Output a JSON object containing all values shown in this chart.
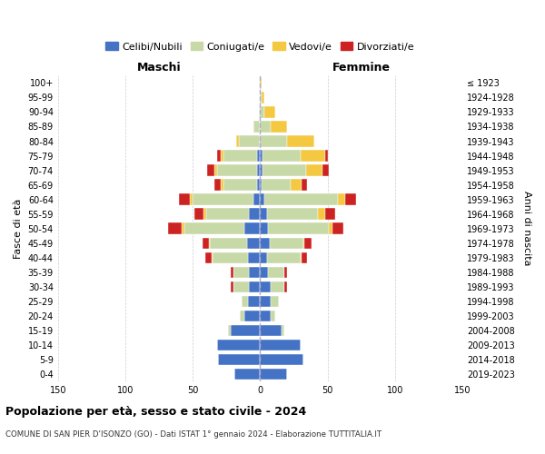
{
  "age_groups": [
    "0-4",
    "5-9",
    "10-14",
    "15-19",
    "20-24",
    "25-29",
    "30-34",
    "35-39",
    "40-44",
    "45-49",
    "50-54",
    "55-59",
    "60-64",
    "65-69",
    "70-74",
    "75-79",
    "80-84",
    "85-89",
    "90-94",
    "95-99",
    "100+"
  ],
  "birth_years": [
    "2019-2023",
    "2014-2018",
    "2009-2013",
    "2004-2008",
    "1999-2003",
    "1994-1998",
    "1989-1993",
    "1984-1988",
    "1979-1983",
    "1974-1978",
    "1969-1973",
    "1964-1968",
    "1959-1963",
    "1954-1958",
    "1949-1953",
    "1944-1948",
    "1939-1943",
    "1934-1938",
    "1929-1933",
    "1924-1928",
    "≤ 1923"
  ],
  "males": {
    "celibi": [
      19,
      31,
      32,
      22,
      12,
      9,
      8,
      8,
      9,
      10,
      12,
      8,
      5,
      2,
      2,
      2,
      0,
      0,
      0,
      0,
      0
    ],
    "coniugati": [
      0,
      0,
      0,
      2,
      3,
      5,
      12,
      12,
      26,
      27,
      44,
      32,
      45,
      25,
      30,
      25,
      16,
      5,
      1,
      0,
      0
    ],
    "vedovi": [
      0,
      0,
      0,
      0,
      0,
      0,
      0,
      0,
      1,
      1,
      2,
      2,
      2,
      2,
      2,
      2,
      2,
      0,
      0,
      0,
      0
    ],
    "divorziati": [
      0,
      0,
      0,
      0,
      0,
      0,
      2,
      2,
      5,
      5,
      10,
      7,
      8,
      5,
      5,
      3,
      0,
      0,
      0,
      0,
      0
    ]
  },
  "females": {
    "nubili": [
      20,
      32,
      30,
      16,
      8,
      8,
      8,
      6,
      5,
      7,
      6,
      5,
      3,
      1,
      2,
      2,
      0,
      0,
      0,
      0,
      0
    ],
    "coniugate": [
      0,
      0,
      0,
      2,
      3,
      6,
      10,
      12,
      25,
      25,
      45,
      38,
      55,
      22,
      32,
      28,
      20,
      8,
      3,
      1,
      0
    ],
    "vedove": [
      0,
      0,
      0,
      0,
      0,
      0,
      0,
      0,
      1,
      1,
      3,
      5,
      5,
      8,
      12,
      18,
      20,
      12,
      8,
      2,
      1
    ],
    "divorziate": [
      0,
      0,
      0,
      0,
      0,
      0,
      2,
      2,
      4,
      5,
      8,
      8,
      8,
      4,
      5,
      2,
      0,
      0,
      0,
      0,
      0
    ]
  },
  "colors": {
    "celibi": "#4472c4",
    "coniugati": "#c8d9a8",
    "vedovi": "#f5c842",
    "divorziati": "#cc2222"
  },
  "legend_labels": [
    "Celibi/Nubili",
    "Coniugati/e",
    "Vedovi/e",
    "Divorziati/e"
  ],
  "title": "Popolazione per età, sesso e stato civile - 2024",
  "subtitle": "COMUNE DI SAN PIER D'ISONZO (GO) - Dati ISTAT 1° gennaio 2024 - Elaborazione TUTTITALIA.IT",
  "xlabel_left": "Maschi",
  "xlabel_right": "Femmine",
  "ylabel_left": "Fasce di età",
  "ylabel_right": "Anni di nascita",
  "xlim": 150,
  "bg_color": "#ffffff",
  "grid_color": "#cccccc"
}
